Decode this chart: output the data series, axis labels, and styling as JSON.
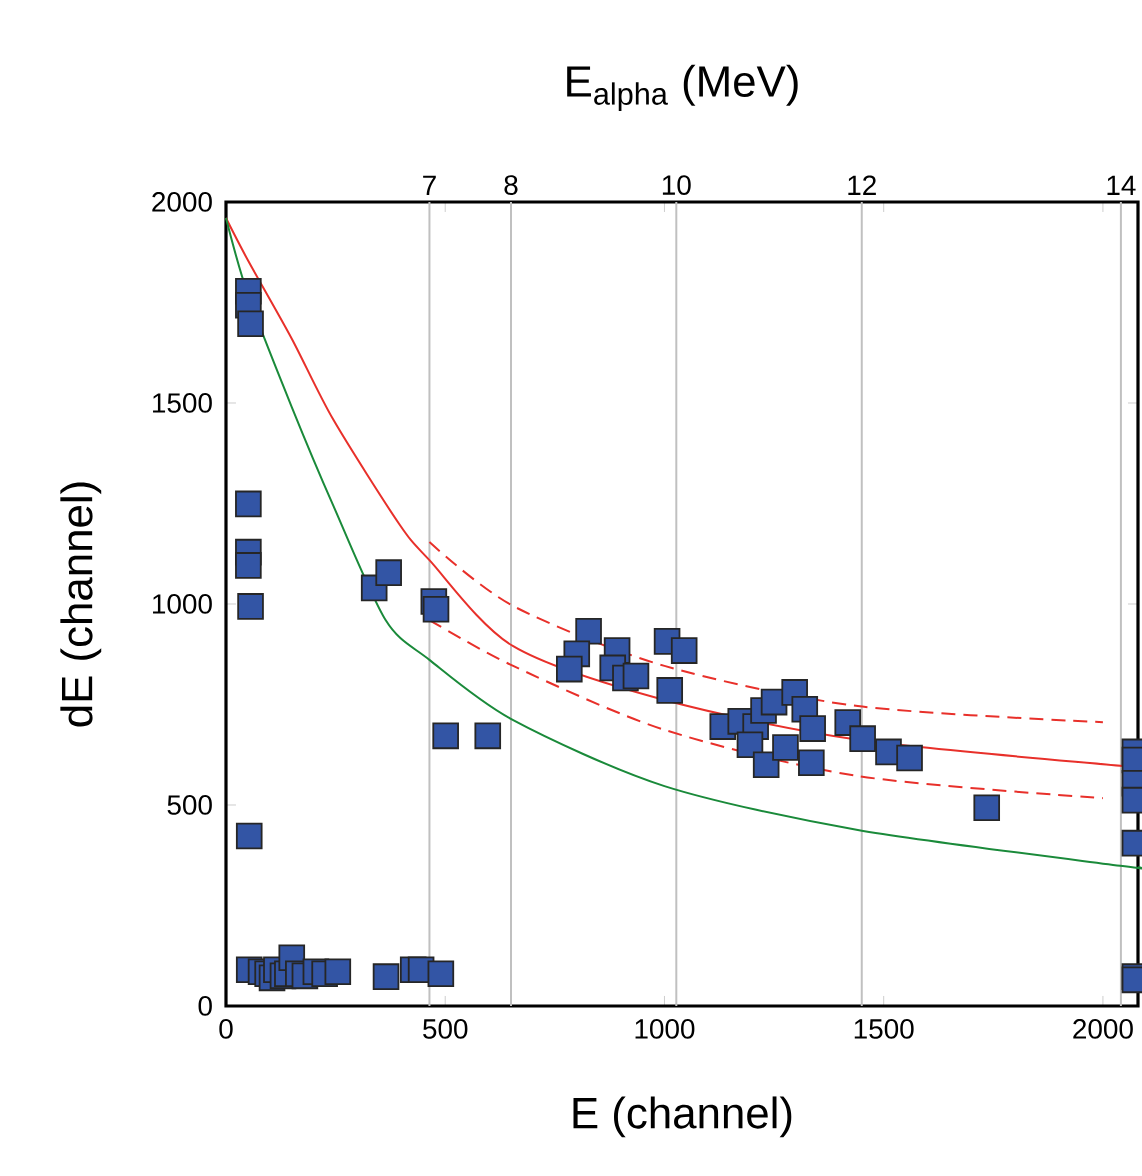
{
  "chart_data": {
    "type": "scatter",
    "xlabel": "E (channel)",
    "ylabel": "dE (channel)",
    "x2label": "E$_{alpha}$ (MeV)",
    "xlim": [
      0,
      2080
    ],
    "ylim": [
      0,
      2000
    ],
    "xticks": [
      0,
      500,
      1000,
      1500,
      2000
    ],
    "yticks": [
      0,
      500,
      1000,
      1500,
      2000
    ],
    "annotations": [
      {
        "text": "7",
        "x": 464,
        "y": 2000
      },
      {
        "text": "8",
        "x": 650,
        "y": 2000
      },
      {
        "text": "10",
        "x": 1027,
        "y": 2000
      },
      {
        "text": "12",
        "x": 1450,
        "y": 2000
      },
      {
        "text": "14",
        "x": 2041,
        "y": 2000
      }
    ],
    "ref_lines": [
      {
        "axis": "x",
        "value": 464,
        "color": "#c0c0c0"
      },
      {
        "axis": "x",
        "value": 650,
        "color": "#c0c0c0"
      },
      {
        "axis": "x",
        "value": 1027,
        "color": "#c0c0c0"
      },
      {
        "axis": "x",
        "value": 1450,
        "color": "#c0c0c0"
      },
      {
        "axis": "x",
        "value": 2041,
        "color": "#c0c0c0"
      }
    ],
    "series": [
      {
        "type": "line",
        "color": "#e8302a",
        "line_style": "solid",
        "x": [
          0,
          50,
          150,
          245,
          395,
          464,
          655,
          1000,
          1441,
          2045,
          2080
        ],
        "values": [
          1960,
          1855,
          1660,
          1458,
          1199,
          1109,
          895,
          761,
          662,
          597,
          594
        ]
      },
      {
        "type": "line",
        "color": "#e8302a",
        "line_style": "dashed",
        "x": [
          464,
          655,
          1000,
          1441,
          2000
        ],
        "values": [
          1154,
          995,
          846,
          746,
          706
        ]
      },
      {
        "type": "line",
        "color": "#e8302a",
        "line_style": "dashed",
        "x": [
          464,
          655,
          1000,
          1441,
          2000
        ],
        "values": [
          960,
          846,
          687,
          572,
          517
        ]
      },
      {
        "type": "line",
        "color": "#1a8a3a",
        "line_style": "solid",
        "x": [
          0,
          50,
          150,
          245,
          364,
          464,
          655,
          1000,
          1441,
          2045,
          2080
        ],
        "values": [
          1960,
          1770,
          1490,
          1244,
          960,
          861,
          711,
          547,
          438,
          348,
          345
        ]
      },
      {
        "type": "scatter",
        "marker": "square",
        "color": "#3355a5",
        "x": [
          51,
          51,
          56,
          51,
          51,
          51,
          56,
          338,
          371,
          474,
          479,
          501,
          597,
          53,
          53,
          80,
          95,
          105,
          115,
          130,
          140,
          150,
          165,
          180,
          205,
          225,
          255,
          365,
          427,
          445,
          490,
          827,
          800,
          783,
          892,
          882,
          911,
          935,
          1006,
          1012,
          1045,
          1133,
          1174,
          1208,
          1226,
          1250,
          1297,
          1320,
          1338,
          1195,
          1232,
          1276,
          1335,
          1418,
          1452,
          1511,
          1559,
          1735,
          2073,
          2073,
          2073,
          2073,
          2073,
          2073,
          2073
        ],
        "values": [
          1778,
          1743,
          1697,
          1249,
          1129,
          1096,
          994,
          1040,
          1078,
          1006,
          987,
          672,
          672,
          423,
          90,
          85,
          80,
          70,
          90,
          75,
          80,
          120,
          80,
          75,
          85,
          80,
          85,
          73,
          90,
          90,
          80,
          932,
          876,
          838,
          884,
          841,
          816,
          821,
          907,
          785,
          884,
          695,
          708,
          695,
          735,
          756,
          780,
          738,
          690,
          650,
          600,
          643,
          605,
          705,
          665,
          632,
          617,
          493,
          632,
          612,
          554,
          512,
          405,
          73,
          65
        ]
      }
    ]
  }
}
